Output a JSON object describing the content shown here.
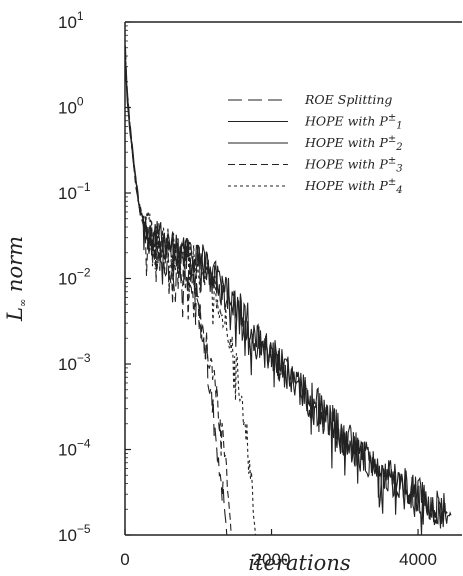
{
  "chart_data": {
    "type": "line",
    "xlabel": "iterations",
    "ylabel": "L∞ norm",
    "ylabel_parts": [
      "L",
      "∞",
      " norm"
    ],
    "xlim": [
      0,
      4600
    ],
    "ylim": [
      1e-05,
      10
    ],
    "yscale": "log",
    "x_ticks": [
      {
        "value": 0,
        "label": "0"
      },
      {
        "value": 2000,
        "label": "2000"
      },
      {
        "value": 4000,
        "label": "4000"
      }
    ],
    "y_ticks": [
      {
        "exp": 1,
        "base": "10",
        "sup": "1"
      },
      {
        "exp": 0,
        "base": "10",
        "sup": "0"
      },
      {
        "exp": -1,
        "base": "10",
        "sup": "−1"
      },
      {
        "exp": -2,
        "base": "10",
        "sup": "−2"
      },
      {
        "exp": -3,
        "base": "10",
        "sup": "−3"
      },
      {
        "exp": -4,
        "base": "10",
        "sup": "−4"
      },
      {
        "exp": -5,
        "base": "10",
        "sup": "−5"
      }
    ],
    "legend_position": "top-right",
    "series": [
      {
        "name": "ROE Splitting",
        "legend": {
          "main": "ROE Splitting",
          "sup": "",
          "sub": ""
        },
        "dash": "14,6",
        "color": "#222222",
        "points": [
          [
            5,
            5
          ],
          [
            30,
            1.6
          ],
          [
            60,
            0.8
          ],
          [
            100,
            0.35
          ],
          [
            150,
            0.15
          ],
          [
            200,
            0.07
          ],
          [
            260,
            0.045
          ],
          [
            320,
            0.03
          ],
          [
            400,
            0.022
          ],
          [
            500,
            0.018
          ],
          [
            600,
            0.015
          ],
          [
            700,
            0.013
          ],
          [
            800,
            0.012
          ],
          [
            880,
            0.0105
          ],
          [
            940,
            0.0085
          ],
          [
            1000,
            0.005
          ],
          [
            1060,
            0.0025
          ],
          [
            1120,
            0.001
          ],
          [
            1180,
            0.0004
          ],
          [
            1240,
            0.00016
          ],
          [
            1300,
            6e-05
          ],
          [
            1350,
            2.5e-05
          ],
          [
            1390,
            1e-05
          ]
        ]
      },
      {
        "name": "HOPE with P±1",
        "legend": {
          "main": "HOPE with P",
          "sup": "±",
          "sub": "1"
        },
        "dash": "",
        "color": "#222222",
        "points": [
          [
            5,
            4
          ],
          [
            30,
            1.5
          ],
          [
            60,
            0.7
          ],
          [
            100,
            0.35
          ],
          [
            150,
            0.14
          ],
          [
            200,
            0.07
          ],
          [
            270,
            0.045
          ],
          [
            350,
            0.035
          ],
          [
            450,
            0.03
          ],
          [
            550,
            0.027
          ],
          [
            650,
            0.025
          ],
          [
            750,
            0.023
          ],
          [
            850,
            0.021
          ],
          [
            950,
            0.018
          ],
          [
            1050,
            0.016
          ],
          [
            1150,
            0.013
          ],
          [
            1250,
            0.01
          ],
          [
            1350,
            0.008
          ],
          [
            1450,
            0.006
          ],
          [
            1550,
            0.0045
          ],
          [
            1650,
            0.0035
          ],
          [
            1760,
            0.0022
          ],
          [
            1850,
            0.0019
          ],
          [
            2000,
            0.0013
          ],
          [
            2200,
            0.00085
          ],
          [
            2400,
            0.00055
          ],
          [
            2600,
            0.00035
          ],
          [
            2800,
            0.00022
          ],
          [
            3000,
            0.00014
          ],
          [
            3200,
            9e-05
          ],
          [
            3400,
            7e-05
          ],
          [
            3600,
            5e-05
          ],
          [
            3800,
            3.8e-05
          ],
          [
            4000,
            2.9e-05
          ],
          [
            4200,
            2.3e-05
          ],
          [
            4400,
            1.8e-05
          ]
        ]
      },
      {
        "name": "HOPE with P±2",
        "legend": {
          "main": "HOPE with P",
          "sup": "±",
          "sub": "2"
        },
        "dash": "",
        "color": "#222222",
        "points": [
          [
            5,
            3
          ],
          [
            30,
            1.3
          ],
          [
            60,
            0.6
          ],
          [
            100,
            0.3
          ],
          [
            150,
            0.13
          ],
          [
            200,
            0.065
          ],
          [
            270,
            0.04
          ],
          [
            350,
            0.03
          ],
          [
            450,
            0.026
          ],
          [
            550,
            0.024
          ],
          [
            650,
            0.022
          ],
          [
            750,
            0.02
          ],
          [
            850,
            0.018
          ],
          [
            950,
            0.016
          ],
          [
            1050,
            0.014
          ],
          [
            1150,
            0.012
          ],
          [
            1250,
            0.009
          ],
          [
            1350,
            0.0072
          ],
          [
            1450,
            0.0055
          ],
          [
            1550,
            0.004
          ],
          [
            1650,
            0.003
          ],
          [
            1760,
            0.0019
          ],
          [
            1850,
            0.0017
          ],
          [
            2000,
            0.0012
          ],
          [
            2200,
            0.00078
          ],
          [
            2400,
            0.0005
          ],
          [
            2600,
            0.00032
          ],
          [
            2800,
            0.0002
          ],
          [
            3000,
            0.00013
          ],
          [
            3200,
            8.5e-05
          ],
          [
            3400,
            6.5e-05
          ],
          [
            3600,
            4.8e-05
          ],
          [
            3800,
            3.6e-05
          ],
          [
            4000,
            2.8e-05
          ],
          [
            4200,
            2.2e-05
          ],
          [
            4450,
            1.7e-05
          ]
        ]
      },
      {
        "name": "HOPE with P±3",
        "legend": {
          "main": "HOPE with P",
          "sup": "±",
          "sub": "3"
        },
        "dash": "7,4",
        "color": "#222222",
        "points": [
          [
            5,
            4
          ],
          [
            30,
            1.5
          ],
          [
            60,
            0.7
          ],
          [
            100,
            0.3
          ],
          [
            150,
            0.12
          ],
          [
            200,
            0.06
          ],
          [
            270,
            0.04
          ],
          [
            350,
            0.03
          ],
          [
            450,
            0.025
          ],
          [
            550,
            0.02
          ],
          [
            650,
            0.017
          ],
          [
            750,
            0.014
          ],
          [
            850,
            0.01
          ],
          [
            950,
            0.006
          ],
          [
            1050,
            0.003
          ],
          [
            1150,
            0.0012
          ],
          [
            1230,
            0.0005
          ],
          [
            1300,
            0.0002
          ],
          [
            1360,
            8e-05
          ],
          [
            1410,
            3e-05
          ],
          [
            1450,
            1e-05
          ]
        ]
      },
      {
        "name": "HOPE with P±4",
        "legend": {
          "main": "HOPE with P",
          "sup": "±",
          "sub": "4"
        },
        "dash": "3,3",
        "color": "#222222",
        "points": [
          [
            5,
            4.5
          ],
          [
            30,
            1.6
          ],
          [
            60,
            0.75
          ],
          [
            100,
            0.32
          ],
          [
            150,
            0.13
          ],
          [
            200,
            0.065
          ],
          [
            270,
            0.045
          ],
          [
            350,
            0.035
          ],
          [
            450,
            0.03
          ],
          [
            550,
            0.026
          ],
          [
            650,
            0.022
          ],
          [
            750,
            0.019
          ],
          [
            850,
            0.017
          ],
          [
            950,
            0.015
          ],
          [
            1050,
            0.012
          ],
          [
            1150,
            0.009
          ],
          [
            1250,
            0.0065
          ],
          [
            1350,
            0.004
          ],
          [
            1450,
            0.002
          ],
          [
            1520,
            0.001
          ],
          [
            1580,
            0.0005
          ],
          [
            1640,
            0.0002
          ],
          [
            1700,
            6e-05
          ],
          [
            1750,
            2e-05
          ],
          [
            1780,
            1e-05
          ]
        ]
      }
    ]
  }
}
